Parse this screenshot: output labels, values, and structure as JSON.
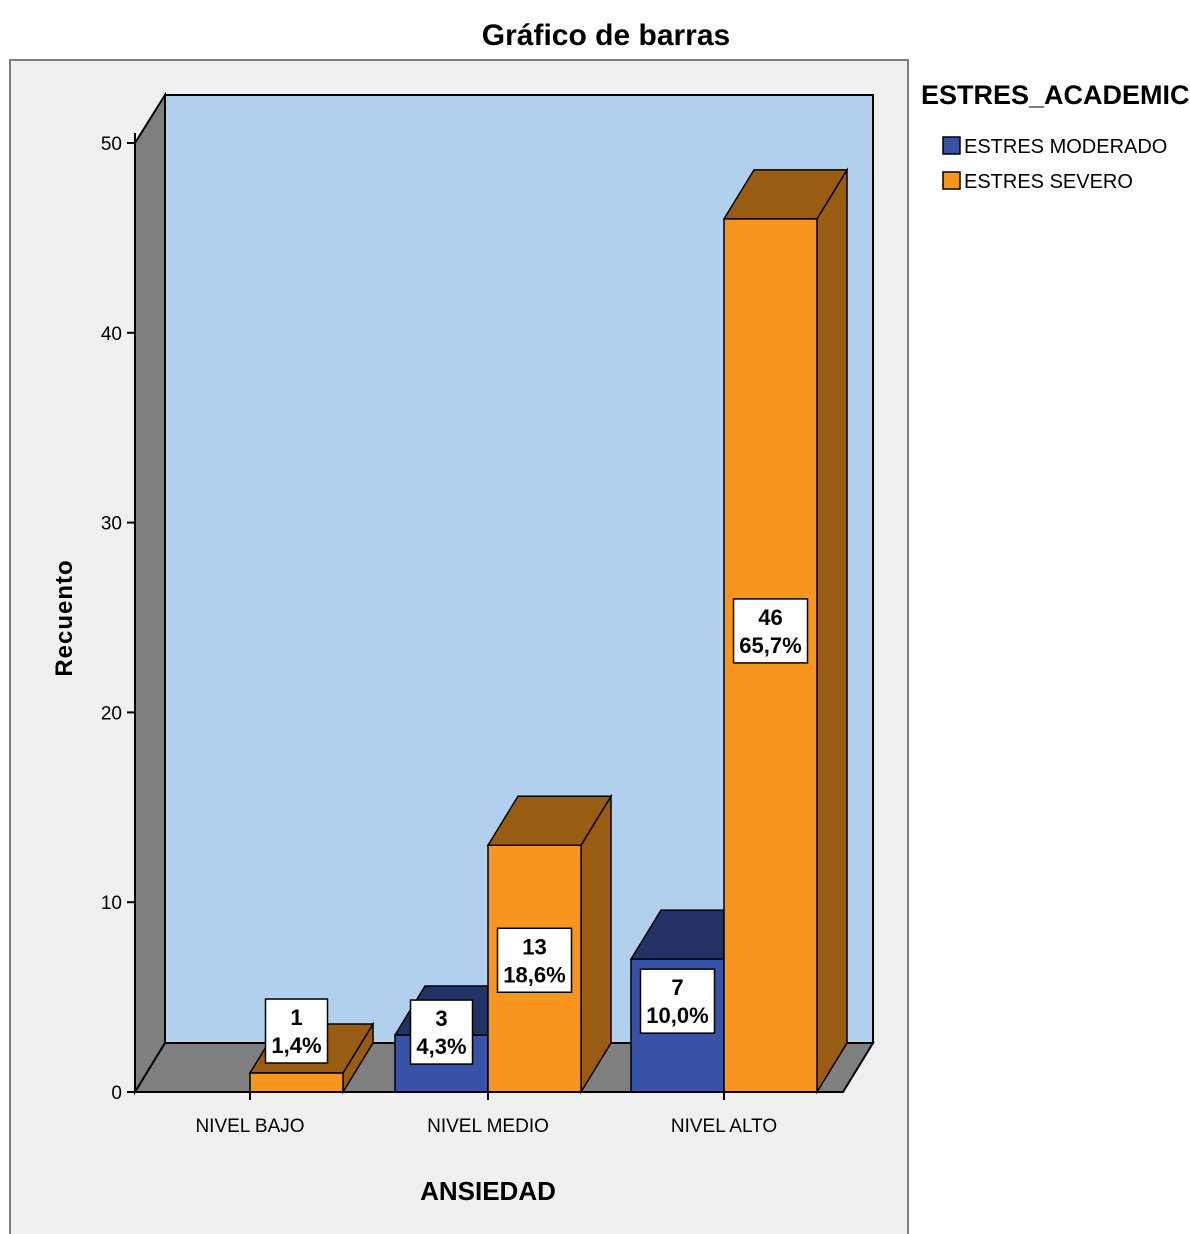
{
  "chart_data": {
    "type": "bar",
    "title": "Gráfico de barras",
    "xlabel": "ANSIEDAD",
    "ylabel": "Recuento",
    "categories": [
      "NIVEL BAJO",
      "NIVEL MEDIO",
      "NIVEL ALTO"
    ],
    "ylim": [
      0,
      50
    ],
    "yticks": [
      0,
      10,
      20,
      30,
      40,
      50
    ],
    "legend": {
      "title": "ESTRES_ACADEMICO",
      "position": "right"
    },
    "series": [
      {
        "name": "ESTRES MODERADO",
        "color": "#3852a8",
        "values": [
          0,
          3,
          7
        ],
        "labels": [
          null,
          [
            "3",
            "4,3%"
          ],
          [
            "7",
            "10,0%"
          ]
        ]
      },
      {
        "name": "ESTRES SEVERO",
        "color": "#f7951e",
        "values": [
          1,
          13,
          46
        ],
        "labels": [
          [
            "1",
            "1,4%"
          ],
          [
            "13",
            "18,6%"
          ],
          [
            "46",
            "65,7%"
          ]
        ]
      }
    ],
    "colors": {
      "plot_back": "#b0d0ee",
      "floor": "#7f7f7f",
      "frame_back": "#f0f0f0"
    }
  }
}
